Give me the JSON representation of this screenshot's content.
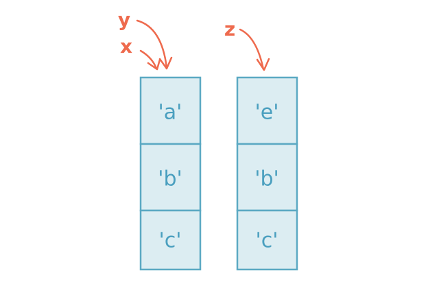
{
  "colors": {
    "cell_fill": "#dcedf2",
    "cell_border": "#5ba9c3",
    "cell_text": "#4a9fbf",
    "pointer": "#ee6a4d"
  },
  "lists": [
    {
      "cells": [
        "'a'",
        "'b'",
        "'c'"
      ],
      "pointers": [
        "y",
        "x"
      ]
    },
    {
      "cells": [
        "'e'",
        "'b'",
        "'c'"
      ],
      "pointers": [
        "z"
      ]
    }
  ]
}
